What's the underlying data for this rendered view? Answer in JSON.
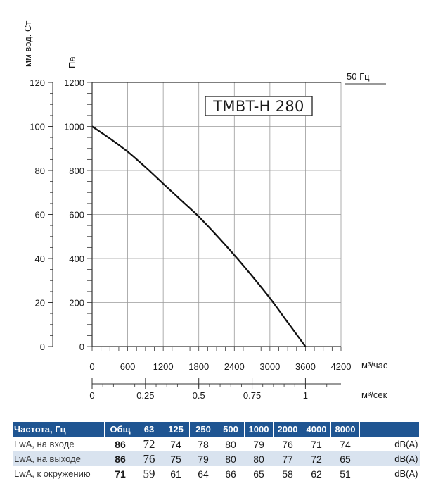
{
  "chart_data": {
    "type": "line",
    "title": "TMBT-H 280",
    "frequency_label": "50 Гц",
    "x_unit": "м³/час",
    "x2_unit": "м³/сек",
    "y_unit_left": "мм вод. Ст",
    "y_unit_right": "Па",
    "xlim": [
      0,
      4200
    ],
    "x2lim": [
      0,
      1.1667
    ],
    "ylim": [
      0,
      1200
    ],
    "y2lim": [
      0,
      120
    ],
    "x_ticks": [
      "0",
      "600",
      "1200",
      "1800",
      "2400",
      "3000",
      "3600",
      "4200"
    ],
    "x2_ticks": [
      {
        "value": 0,
        "label": "0"
      },
      {
        "value": 0.25,
        "label": "0.25"
      },
      {
        "value": 0.5,
        "label": "0.5"
      },
      {
        "value": 0.75,
        "label": "0.75"
      },
      {
        "value": 1,
        "label": "1"
      }
    ],
    "y_ticks": [
      "0",
      "200",
      "400",
      "600",
      "800",
      "1000",
      "1200"
    ],
    "y2_ticks": [
      "0",
      "20",
      "40",
      "60",
      "80",
      "100",
      "120"
    ],
    "grid": true,
    "series": [
      {
        "x": [
          0,
          300,
          600,
          900,
          1200,
          1500,
          1800,
          2100,
          2400,
          2700,
          3000,
          3300,
          3600
        ],
        "y": [
          1000,
          945,
          885,
          815,
          740,
          665,
          590,
          505,
          415,
          320,
          220,
          110,
          0
        ]
      }
    ]
  },
  "noise_table": {
    "headers": [
      "Частота, Гц",
      "Общ",
      "63",
      "125",
      "250",
      "500",
      "1000",
      "2000",
      "4000",
      "8000",
      ""
    ],
    "rows": [
      {
        "label": "LwA, на входе",
        "total": "86",
        "values": [
          "72",
          "74",
          "78",
          "80",
          "79",
          "76",
          "71",
          "74"
        ],
        "unit": "dB(A)"
      },
      {
        "label": "LwA, на выходе",
        "total": "86",
        "values": [
          "76",
          "75",
          "79",
          "80",
          "80",
          "77",
          "72",
          "65"
        ],
        "unit": "dB(A)"
      },
      {
        "label": "LwA, к окружению",
        "total": "71",
        "values": [
          "59",
          "61",
          "64",
          "66",
          "65",
          "58",
          "62",
          "51"
        ],
        "unit": "dB(A)"
      }
    ]
  }
}
